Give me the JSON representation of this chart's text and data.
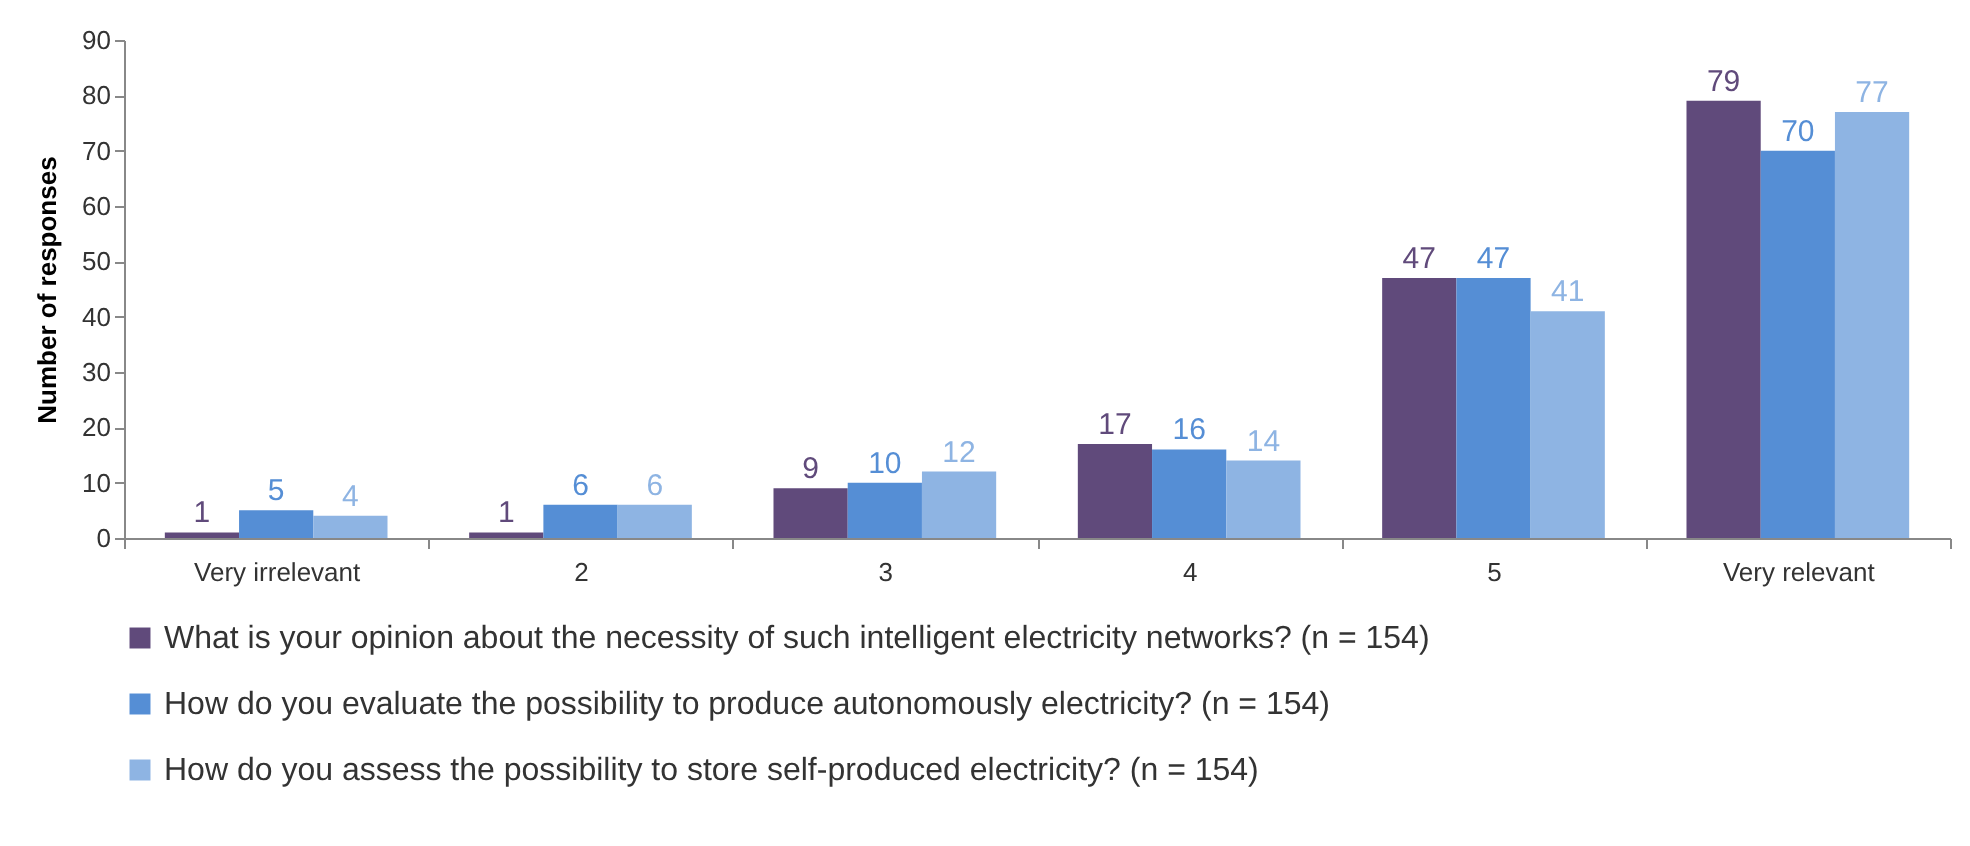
{
  "chart_data": {
    "type": "bar",
    "ylabel": "Number of responses",
    "categories": [
      "Very irrelevant",
      "2",
      "3",
      "4",
      "5",
      "Very relevant"
    ],
    "series": [
      {
        "name": "What is your opinion about the necessity of such intelligent electricity networks? (n = 154)",
        "color": "#604a7b",
        "values": [
          1,
          1,
          9,
          17,
          47,
          79
        ]
      },
      {
        "name": "How do you evaluate the possibility to produce autonomously electricity? (n = 154)",
        "color": "#558ed5",
        "values": [
          5,
          6,
          10,
          16,
          47,
          70
        ]
      },
      {
        "name": "How do you assess the possibility to store self-produced electricity? (n = 154)",
        "color": "#8eb4e3",
        "values": [
          4,
          6,
          12,
          14,
          41,
          77
        ]
      }
    ],
    "ylim": [
      0,
      90
    ],
    "yticks": [
      0,
      10,
      20,
      30,
      40,
      50,
      60,
      70,
      80,
      90
    ],
    "grid": false,
    "legend": "bottom",
    "data_labels": true
  }
}
